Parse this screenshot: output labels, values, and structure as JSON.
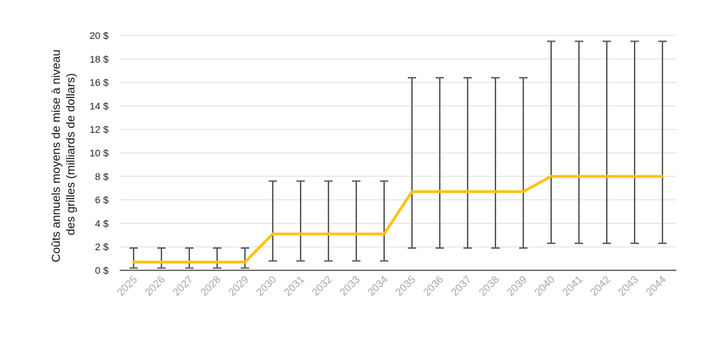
{
  "chart_data": {
    "type": "line",
    "title": "",
    "xlabel": "",
    "ylabel_lines": [
      "Coûts annuels moyens de mise à niveau",
      "des grilles (milliards de dollars)"
    ],
    "x": [
      "2025",
      "2026",
      "2027",
      "2028",
      "2029",
      "2030",
      "2031",
      "2032",
      "2033",
      "2034",
      "2035",
      "2036",
      "2037",
      "2038",
      "2039",
      "2040",
      "2041",
      "2042",
      "2043",
      "2044"
    ],
    "ylim": [
      0,
      20
    ],
    "yticks": [
      0,
      2,
      4,
      6,
      8,
      10,
      12,
      14,
      16,
      18,
      20
    ],
    "ytick_labels": [
      "0 $",
      "2 $",
      "4 $",
      "6 $",
      "8 $",
      "10 $",
      "12 $",
      "14 $",
      "16 $",
      "18 $",
      "20 $"
    ],
    "grid": true,
    "series": [
      {
        "values": [
          0.7,
          0.7,
          0.7,
          0.7,
          0.7,
          3.1,
          3.1,
          3.1,
          3.1,
          3.1,
          6.7,
          6.7,
          6.7,
          6.7,
          6.7,
          8.0,
          8.0,
          8.0,
          8.0,
          8.0
        ],
        "error_low": [
          0.2,
          0.2,
          0.2,
          0.2,
          0.2,
          0.8,
          0.8,
          0.8,
          0.8,
          0.8,
          1.9,
          1.9,
          1.9,
          1.9,
          1.9,
          2.3,
          2.3,
          2.3,
          2.3,
          2.3
        ],
        "error_high": [
          1.9,
          1.9,
          1.9,
          1.9,
          1.9,
          7.6,
          7.6,
          7.6,
          7.6,
          7.6,
          16.4,
          16.4,
          16.4,
          16.4,
          16.4,
          19.5,
          19.5,
          19.5,
          19.5,
          19.5
        ],
        "color": "#ffc20e",
        "error_color": "#595959"
      }
    ],
    "colors": {
      "grid": "#d9d9d9",
      "axis": "#404040"
    }
  }
}
